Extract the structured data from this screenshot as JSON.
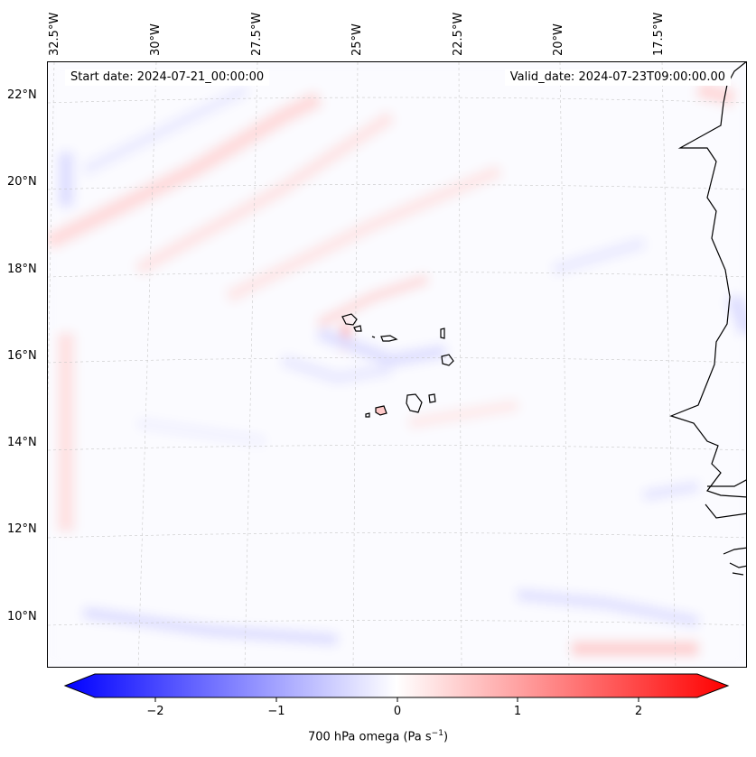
{
  "header": {
    "start_date": "Start date: 2024-07-21_00:00:00",
    "valid_date": "Valid_date: 2024-07-23T09:00:00.00"
  },
  "map": {
    "longitude_ticks": [
      "32.5°W",
      "30°W",
      "27.5°W",
      "25°W",
      "22.5°W",
      "20°W",
      "17.5°W"
    ],
    "latitude_ticks": [
      "22°N",
      "20°N",
      "18°N",
      "16°N",
      "14°N",
      "12°N",
      "10°N"
    ],
    "field": "700 hPa omega",
    "colormap": [
      "#0000ff",
      "#ffffff",
      "#ff0000"
    ]
  },
  "colorbar": {
    "ticks": [
      "−2",
      "−1",
      "0",
      "1",
      "2"
    ],
    "range": [
      -2.75,
      2.75
    ],
    "label_text": "700 hPa omega (Pa s",
    "label_exp": "−1",
    "label_close": ")"
  }
}
